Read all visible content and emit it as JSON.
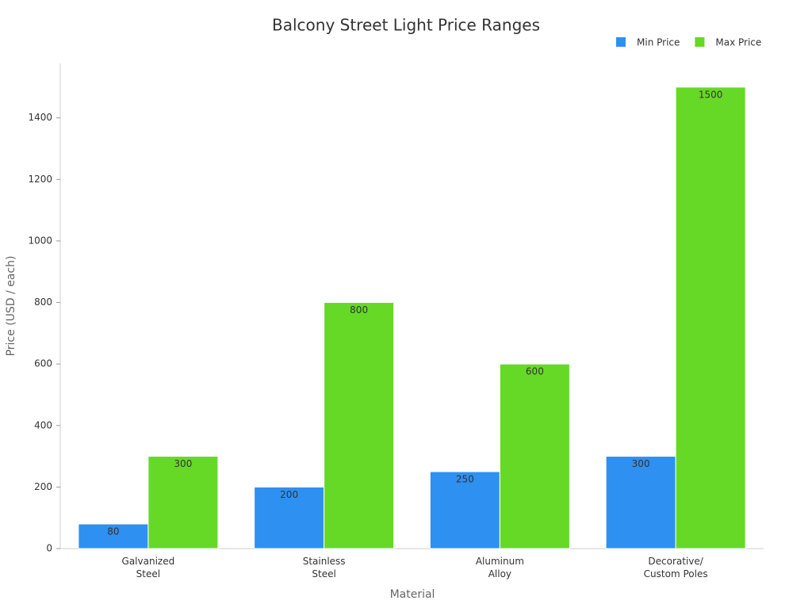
{
  "chart_data": {
    "type": "grouped-bar",
    "title": "Balcony Street Light Price Ranges",
    "x_label": "Material",
    "y_label": "Price (USD / each)",
    "categories": [
      "Galvanized\nSteel",
      "Stainless\nSteel",
      "Aluminum\nAlloy",
      "Decorative/\nCustom Poles"
    ],
    "series": [
      {
        "name": "Min Price",
        "color": "#2e90f0",
        "values": [
          80,
          200,
          250,
          300
        ]
      },
      {
        "name": "Max Price",
        "color": "#66d926",
        "values": [
          300,
          800,
          600,
          1500
        ]
      }
    ],
    "ylim": [
      0,
      1577
    ],
    "yticks": [
      0,
      200,
      400,
      600,
      800,
      1000,
      1200,
      1400
    ],
    "grid": false,
    "legend": "top-right"
  }
}
